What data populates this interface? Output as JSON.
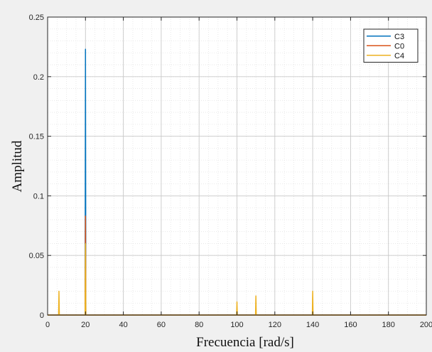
{
  "chart_data": {
    "type": "line",
    "xlabel": "Frecuencia [rad/s]",
    "ylabel": "Amplitud",
    "xlim": [
      0,
      200
    ],
    "ylim": [
      0,
      0.25
    ],
    "x_ticks": [
      0,
      20,
      40,
      60,
      80,
      100,
      120,
      140,
      160,
      180,
      200
    ],
    "y_ticks": [
      0,
      0.05,
      0.1,
      0.15,
      0.2,
      0.25
    ],
    "x_tick_labels": [
      "0",
      "20",
      "40",
      "60",
      "80",
      "100",
      "120",
      "140",
      "160",
      "180",
      "200"
    ],
    "y_tick_labels": [
      "0",
      "0.05",
      "0.1",
      "0.15",
      "0.2",
      "0.25"
    ],
    "grid": true,
    "minor_grid": true,
    "legend_position": "top-right",
    "series": [
      {
        "name": "C3",
        "color": "#0072BD",
        "x": [
          0,
          19.8,
          20,
          20.2,
          200
        ],
        "y": [
          0,
          0,
          0.223,
          0,
          0
        ]
      },
      {
        "name": "C0",
        "color": "#D95319",
        "x": [
          0,
          19.8,
          20,
          20.2,
          200
        ],
        "y": [
          0,
          0,
          0.083,
          0,
          0
        ]
      },
      {
        "name": "C4",
        "color": "#EDB120",
        "x": [
          0,
          5.8,
          6,
          6.2,
          19.8,
          20,
          20.2,
          99.8,
          100,
          100.2,
          109.8,
          110,
          110.2,
          139.8,
          140,
          140.2,
          200
        ],
        "y": [
          0,
          0,
          0.02,
          0,
          0,
          0.06,
          0,
          0,
          0.011,
          0,
          0,
          0.016,
          0,
          0,
          0.02,
          0,
          0
        ]
      }
    ]
  }
}
